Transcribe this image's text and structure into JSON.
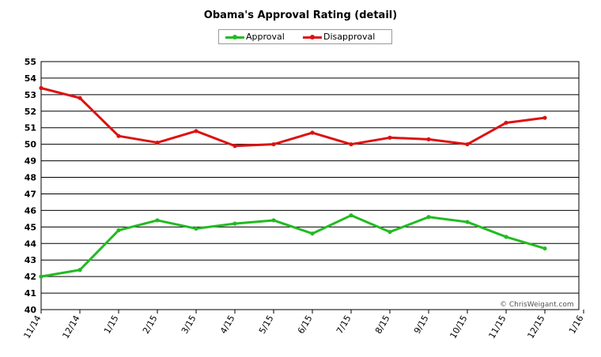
{
  "chart_data": {
    "type": "line",
    "title": "Obama's Approval Rating (detail)",
    "x_ticks": [
      "11/14",
      "12/14",
      "1/15",
      "2/15",
      "3/15",
      "4/15",
      "5/15",
      "6/15",
      "7/15",
      "8/15",
      "9/15",
      "10/15",
      "11/15",
      "12/15",
      "1/16"
    ],
    "x": [
      "11/14",
      "12/14",
      "1/15",
      "2/15",
      "3/15",
      "4/15",
      "5/15",
      "6/15",
      "7/15",
      "8/15",
      "9/15",
      "10/15",
      "11/15",
      "12/15"
    ],
    "series": [
      {
        "name": "Approval",
        "color": "#22bb22",
        "values": [
          42.0,
          42.4,
          44.8,
          45.4,
          44.9,
          45.2,
          45.4,
          44.6,
          45.7,
          44.7,
          45.6,
          45.3,
          44.4,
          43.7
        ]
      },
      {
        "name": "Disapproval",
        "color": "#dd1111",
        "values": [
          53.4,
          52.8,
          50.5,
          50.1,
          50.8,
          49.9,
          50.0,
          50.7,
          50.0,
          50.4,
          50.3,
          50.0,
          51.3,
          51.6
        ]
      }
    ],
    "ylim": [
      40,
      55
    ],
    "y_ticks": [
      40,
      41,
      42,
      43,
      44,
      45,
      46,
      47,
      48,
      49,
      50,
      51,
      52,
      53,
      54,
      55
    ],
    "grid": true,
    "legend_position": "top-center",
    "credit": "© ChrisWeigant.com"
  }
}
